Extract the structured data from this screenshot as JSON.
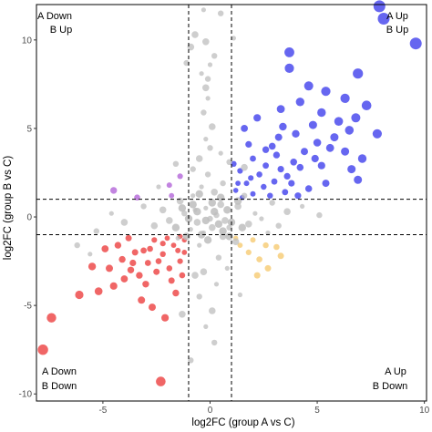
{
  "chart_data": {
    "type": "scatter",
    "xlabel": "log2FC (group A vs C)",
    "ylabel": "log2FC (group B vs C)",
    "xlim": [
      -8.1,
      10.1
    ],
    "ylim": [
      -10.4,
      12.0
    ],
    "x_ticks": [
      -5,
      0,
      5,
      10
    ],
    "y_ticks": [
      -10,
      -5,
      0,
      5,
      10
    ],
    "thresholds": {
      "x": [
        -1,
        1
      ],
      "y": [
        -1,
        1
      ]
    },
    "grid": false,
    "quadrant_labels": {
      "top_left": [
        "A Down",
        "B Up"
      ],
      "top_right": [
        "A Up",
        "B Up"
      ],
      "bottom_left": [
        "A Down",
        "B Down"
      ],
      "bottom_right": [
        "A Up",
        "B Down"
      ]
    },
    "colors": {
      "both_up": "#0000e6",
      "both_down": "#e60000",
      "a_down_b_up": "#9932cc",
      "a_up_b_down": "#f4b942",
      "not_significant": "#bdbdbd"
    },
    "series": [
      {
        "color_key": "both_up",
        "points": [
          [
            8.1,
            11.2
          ],
          [
            7.9,
            11.9
          ],
          [
            9.6,
            9.8
          ],
          [
            6.9,
            8.1
          ],
          [
            3.7,
            9.3
          ],
          [
            3.7,
            8.4
          ],
          [
            5.4,
            7.1
          ],
          [
            4.6,
            7.4
          ],
          [
            6.3,
            6.7
          ],
          [
            7.3,
            6.3
          ],
          [
            4.2,
            6.5
          ],
          [
            3.3,
            6.1
          ],
          [
            2.2,
            5.6
          ],
          [
            5.2,
            5.9
          ],
          [
            4.8,
            5.2
          ],
          [
            6.0,
            5.4
          ],
          [
            6.5,
            4.9
          ],
          [
            6.8,
            5.6
          ],
          [
            7.8,
            4.7
          ],
          [
            4.0,
            4.7
          ],
          [
            5.0,
            4.2
          ],
          [
            3.2,
            4.5
          ],
          [
            2.6,
            3.8
          ],
          [
            1.8,
            4.1
          ],
          [
            2.0,
            3.3
          ],
          [
            3.1,
            3.5
          ],
          [
            3.9,
            3.1
          ],
          [
            4.4,
            3.7
          ],
          [
            5.6,
            3.9
          ],
          [
            7.1,
            3.3
          ],
          [
            6.6,
            2.7
          ],
          [
            5.2,
            2.9
          ],
          [
            6.9,
            2.1
          ],
          [
            1.4,
            2.6
          ],
          [
            1.7,
            1.9
          ],
          [
            2.3,
            2.4
          ],
          [
            3.0,
            2.0
          ],
          [
            3.8,
            1.9
          ],
          [
            4.6,
            1.6
          ],
          [
            1.2,
            1.5
          ],
          [
            2.0,
            1.3
          ],
          [
            2.8,
            1.2
          ],
          [
            1.5,
            1.1
          ],
          [
            2.5,
            1.7
          ],
          [
            3.3,
            2.7
          ],
          [
            4.9,
            3.3
          ],
          [
            5.8,
            4.5
          ],
          [
            6.3,
            3.7
          ],
          [
            1.1,
            3.0
          ],
          [
            2.6,
            2.9
          ],
          [
            3.6,
            2.3
          ],
          [
            4.2,
            2.8
          ],
          [
            1.9,
            2.2
          ],
          [
            3.5,
            1.4
          ],
          [
            1.3,
            1.9
          ],
          [
            4.1,
            1.2
          ],
          [
            5.4,
            1.9
          ],
          [
            2.9,
            4.0
          ],
          [
            3.4,
            5.1
          ],
          [
            1.6,
            5.0
          ]
        ]
      },
      {
        "color_key": "both_down",
        "points": [
          [
            -7.8,
            -7.5
          ],
          [
            -7.4,
            -5.7
          ],
          [
            -6.1,
            -4.4
          ],
          [
            -5.2,
            -4.2
          ],
          [
            -4.5,
            -3.9
          ],
          [
            -4.0,
            -3.5
          ],
          [
            -3.2,
            -4.7
          ],
          [
            -2.1,
            -5.7
          ],
          [
            -2.7,
            -5.1
          ],
          [
            -2.5,
            -3.1
          ],
          [
            -3.6,
            -2.6
          ],
          [
            -2.2,
            -2.1
          ],
          [
            -1.4,
            -2.5
          ],
          [
            -1.7,
            -1.6
          ],
          [
            -1.2,
            -1.3
          ],
          [
            -3.1,
            -1.9
          ],
          [
            -2.6,
            -1.3
          ],
          [
            -4.3,
            -1.6
          ],
          [
            -1.9,
            -2.9
          ],
          [
            -1.3,
            -3.3
          ],
          [
            -2.9,
            -2.6
          ],
          [
            -3.8,
            -1.2
          ],
          [
            -4.9,
            -1.8
          ],
          [
            -1.6,
            -4.3
          ],
          [
            -2.3,
            -9.3
          ],
          [
            -3.3,
            -3.3
          ],
          [
            -1.5,
            -1.9
          ],
          [
            -2.0,
            -1.2
          ],
          [
            -3.5,
            -2.0
          ],
          [
            -4.1,
            -2.4
          ],
          [
            -2.8,
            -1.8
          ],
          [
            -1.2,
            -2.0
          ],
          [
            -1.8,
            -3.6
          ],
          [
            -2.4,
            -2.5
          ],
          [
            -3.0,
            -3.8
          ],
          [
            -5.5,
            -2.8
          ],
          [
            -1.4,
            -1.1
          ],
          [
            -2.2,
            -1.5
          ],
          [
            -4.7,
            -2.9
          ],
          [
            -3.7,
            -3.0
          ]
        ]
      },
      {
        "color_key": "a_down_b_up",
        "points": [
          [
            -4.5,
            1.5
          ],
          [
            -1.4,
            2.3
          ],
          [
            -1.9,
            1.8
          ],
          [
            -1.8,
            1.2
          ],
          [
            -3.4,
            1.1
          ]
        ]
      },
      {
        "color_key": "a_up_b_down",
        "points": [
          [
            2.7,
            -2.9
          ],
          [
            2.3,
            -2.4
          ],
          [
            3.1,
            -1.7
          ],
          [
            1.4,
            -1.6
          ],
          [
            2.0,
            -1.3
          ],
          [
            2.6,
            -1.6
          ],
          [
            1.8,
            -2.0
          ],
          [
            3.3,
            -2.2
          ],
          [
            1.2,
            -1.2
          ],
          [
            2.2,
            -3.3
          ]
        ]
      },
      {
        "color_key": "not_significant",
        "points": [
          [
            -0.3,
            11.7
          ],
          [
            0.5,
            11.5
          ],
          [
            -0.7,
            10.3
          ],
          [
            1.1,
            10.1
          ],
          [
            -1.1,
            8.7
          ],
          [
            -0.9,
            9.6
          ],
          [
            -0.4,
            8.1
          ],
          [
            0.2,
            9.1
          ],
          [
            -0.2,
            7.3
          ],
          [
            -0.1,
            6.7
          ],
          [
            -0.3,
            5.9
          ],
          [
            0.1,
            5.1
          ],
          [
            -0.2,
            4.4
          ],
          [
            0.0,
            3.9
          ],
          [
            -0.5,
            3.3
          ],
          [
            0.5,
            3.6
          ],
          [
            -1.6,
            3.0
          ],
          [
            1.6,
            2.8
          ],
          [
            -2.4,
            1.7
          ],
          [
            -3.1,
            0.6
          ],
          [
            -2.2,
            0.4
          ],
          [
            -4.6,
            0.2
          ],
          [
            -5.3,
            -0.8
          ],
          [
            -4.0,
            -0.3
          ],
          [
            -5.6,
            -2.1
          ],
          [
            -6.2,
            -1.6
          ],
          [
            -1.4,
            0.9
          ],
          [
            -0.8,
            1.2
          ],
          [
            0.6,
            1.9
          ],
          [
            1.3,
            0.6
          ],
          [
            2.1,
            0.2
          ],
          [
            2.9,
            0.8
          ],
          [
            3.6,
            0.3
          ],
          [
            4.3,
            0.6
          ],
          [
            5.1,
            0.1
          ],
          [
            1.8,
            -0.4
          ],
          [
            2.7,
            -0.9
          ],
          [
            0.9,
            -0.6
          ],
          [
            -0.6,
            -0.3
          ],
          [
            -0.2,
            0.5
          ],
          [
            0.3,
            0.1
          ],
          [
            0.7,
            -0.2
          ],
          [
            -0.9,
            -0.7
          ],
          [
            -1.2,
            0.2
          ],
          [
            -2.6,
            -0.5
          ],
          [
            -0.5,
            -1.6
          ],
          [
            0.4,
            -2.3
          ],
          [
            -0.3,
            -3.1
          ],
          [
            0.3,
            -3.8
          ],
          [
            -0.5,
            -4.5
          ],
          [
            0.1,
            -5.3
          ],
          [
            -0.2,
            -6.2
          ],
          [
            0.2,
            -7.1
          ],
          [
            -1.3,
            -5.5
          ],
          [
            1.4,
            -4.4
          ],
          [
            -0.9,
            -8.1
          ],
          [
            -0.7,
            -3.3
          ],
          [
            0.8,
            -2.9
          ],
          [
            -0.1,
            2.4
          ],
          [
            0.2,
            1.4
          ],
          [
            -0.4,
            1.7
          ],
          [
            0.9,
            3.1
          ],
          [
            -0.2,
            9.9
          ],
          [
            0.0,
            8.6
          ],
          [
            -0.1,
            7.8
          ],
          [
            1.2,
            -1.4
          ],
          [
            -1.5,
            -1.2
          ],
          [
            -0.8,
            2.7
          ],
          [
            0.6,
            -1.1
          ],
          [
            -0.3,
            -0.9
          ],
          [
            0.0,
            -0.1
          ],
          [
            0.5,
            0.7
          ],
          [
            -0.7,
            0.4
          ],
          [
            1.6,
            1.2
          ],
          [
            -1.9,
            -0.2
          ],
          [
            2.4,
            -0.1
          ],
          [
            3.2,
            -0.5
          ],
          [
            0.1,
            -0.6
          ]
        ]
      }
    ]
  }
}
